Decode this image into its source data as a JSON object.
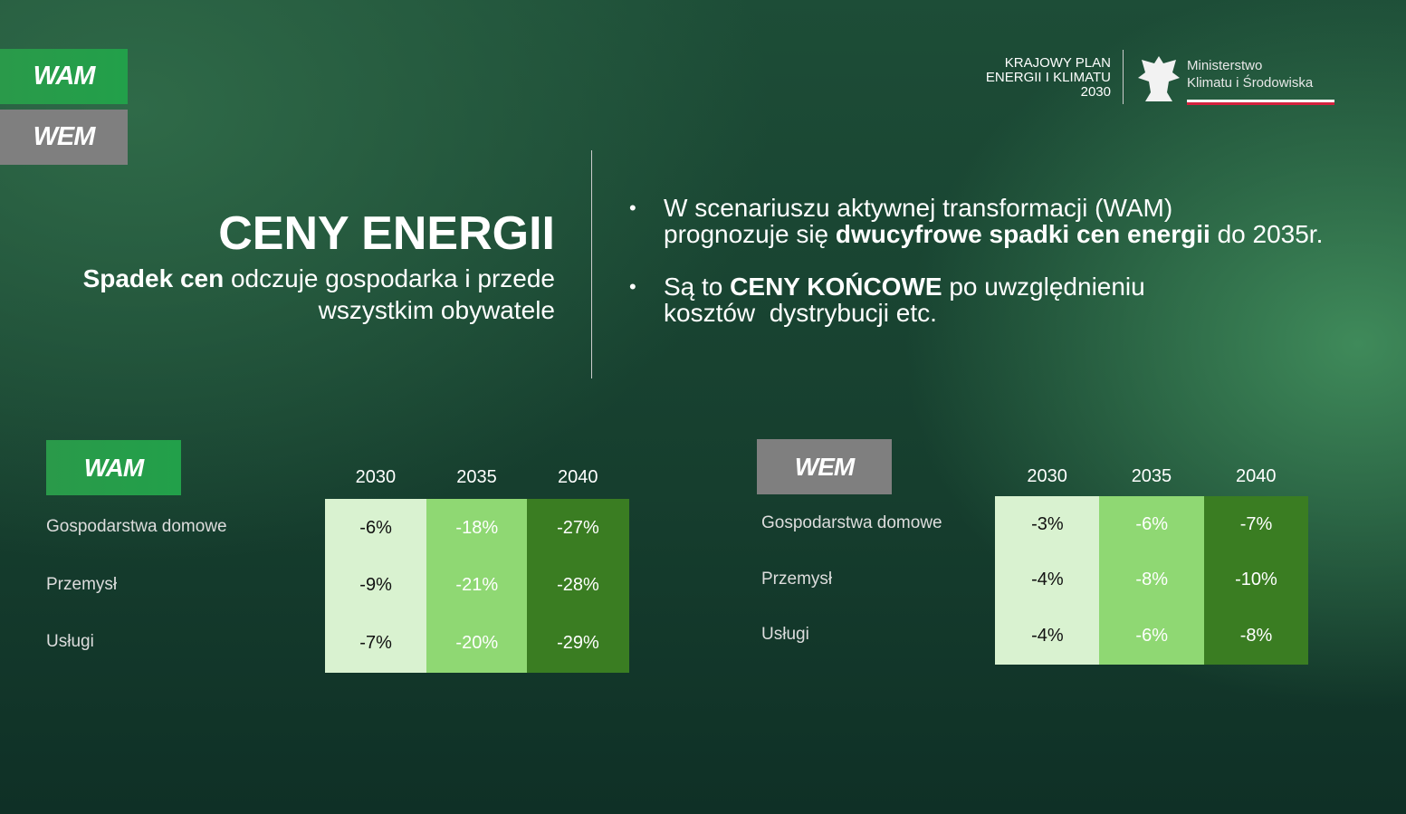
{
  "tabs": [
    "WAM",
    "WEM"
  ],
  "logo": {
    "plan": [
      "KRAJOWY PLAN",
      "ENERGII I KLIMATU",
      "2030"
    ],
    "ministry": [
      "Ministerstwo",
      "Klimatu i Środowiska"
    ]
  },
  "heading": {
    "title": "CENY ENERGII",
    "subtitle": [
      [
        {
          "text": "Spadek cen",
          "bold": true
        },
        {
          "text": " odczuje gospodarka i przede"
        }
      ],
      [
        {
          "text": "wszystkim obywatele"
        }
      ]
    ]
  },
  "bullets": [
    [
      [
        {
          "text": "W scenariuszu aktywnej transformacji (WAM)"
        }
      ],
      [
        {
          "text": "prognozuje się "
        },
        {
          "text": "dwucyfrowe spadki cen energii",
          "bold": true
        },
        {
          "text": " do 2035r."
        }
      ]
    ],
    [
      [
        {
          "text": "Są to "
        },
        {
          "text": "CENY KOŃCOWE",
          "bold": true
        },
        {
          "text": " po uwzględnieniu"
        }
      ],
      [
        {
          "text": "kosztów  dystrybucji etc."
        }
      ]
    ]
  ],
  "tables": [
    {
      "label": "WAM",
      "columns": [
        "2030",
        "2035",
        "2040"
      ],
      "rows": [
        {
          "label": "Gospodarstwa domowe",
          "cells": [
            "-6%",
            "-18%",
            "-27%"
          ]
        },
        {
          "label": "Przemysł",
          "cells": [
            "-9%",
            "-21%",
            "-28%"
          ]
        },
        {
          "label": "Usługi",
          "cells": [
            "-7%",
            "-20%",
            "-29%"
          ]
        }
      ]
    },
    {
      "label": "WEM",
      "columns": [
        "2030",
        "2035",
        "2040"
      ],
      "rows": [
        {
          "label": "Gospodarstwa domowe",
          "cells": [
            "-3%",
            "-6%",
            "-7%"
          ]
        },
        {
          "label": "Przemysł",
          "cells": [
            "-4%",
            "-8%",
            "-10%"
          ]
        },
        {
          "label": "Usługi",
          "cells": [
            "-4%",
            "-6%",
            "-8%"
          ]
        }
      ]
    }
  ]
}
